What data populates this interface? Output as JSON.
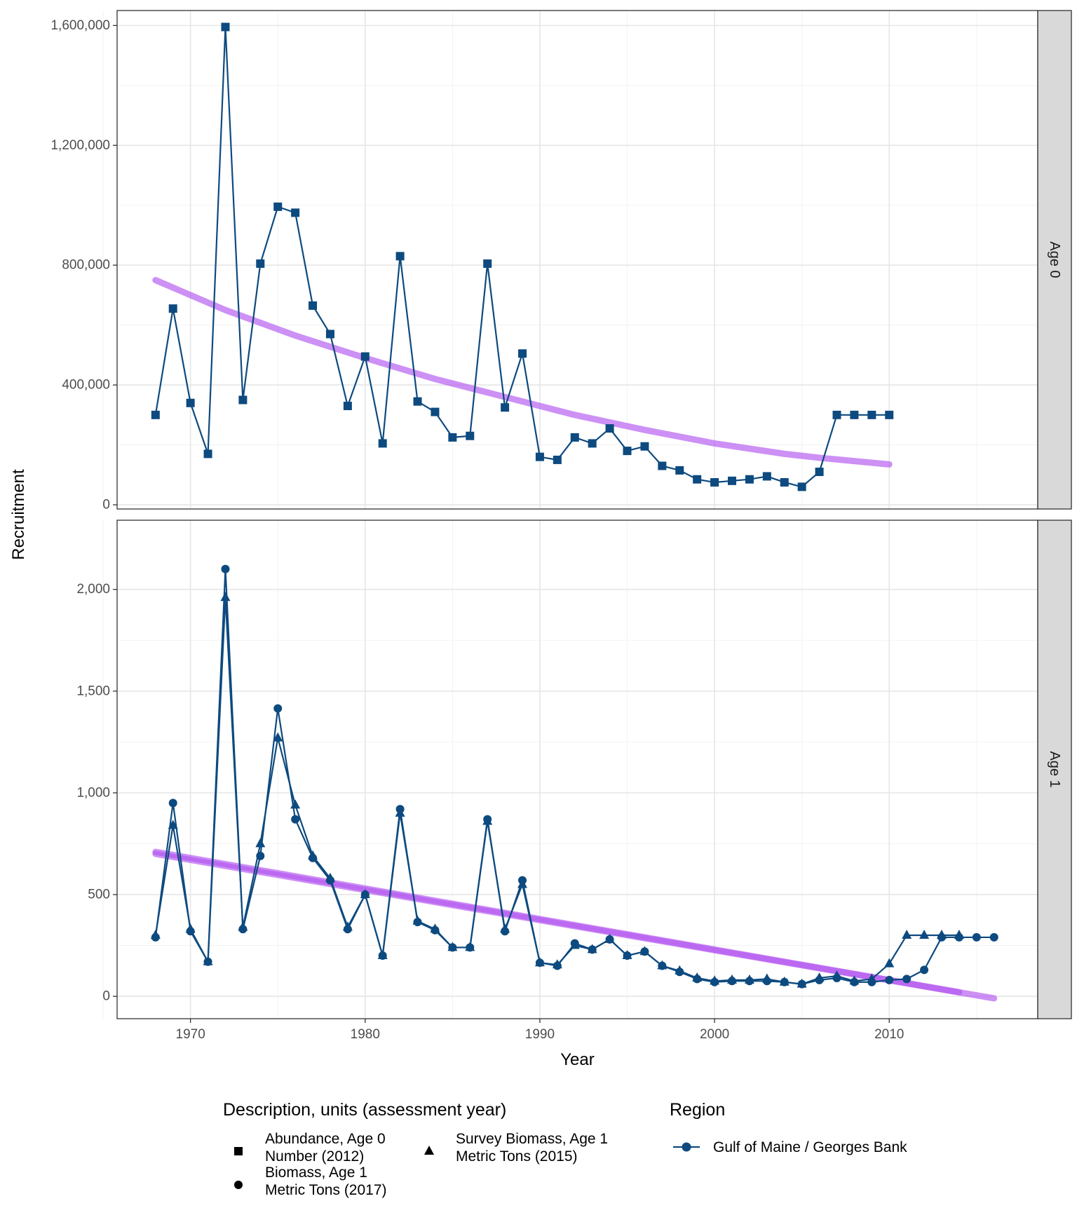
{
  "chart_data": {
    "type": "line",
    "xlabel": "Year",
    "ylabel": "Recruitment",
    "x_ticks": [
      1970,
      1980,
      1990,
      2000,
      2010
    ],
    "xlim": [
      1965.8,
      2018.5
    ],
    "grid": true,
    "trend_color": "#b255f0",
    "series_color": "#0d4a7f",
    "strip_color": "#d9d9d9",
    "legend": {
      "description_title": "Description, units (assessment year)",
      "items": [
        {
          "shape": "square",
          "line1": "Abundance, Age 0",
          "line2": "Number (2012)"
        },
        {
          "shape": "triangle",
          "line1": "Survey Biomass, Age 1",
          "line2": "Metric Tons (2015)"
        },
        {
          "shape": "circle",
          "line1": "Biomass, Age 1",
          "line2": "Metric Tons (2017)"
        }
      ],
      "region_title": "Region",
      "region_label": "Gulf of Maine / Georges Bank"
    },
    "panels": [
      {
        "strip": "Age 0",
        "ylim": [
          -14000,
          1650000
        ],
        "y_ticks": [
          0,
          400000,
          800000,
          1200000,
          1600000
        ],
        "y_tick_labels": [
          "0",
          "400,000",
          "800,000",
          "1,200,000",
          "1,600,000"
        ],
        "series": [
          {
            "shape": "square",
            "x": [
              1968,
              1969,
              1970,
              1971,
              1972,
              1973,
              1974,
              1975,
              1976,
              1977,
              1978,
              1979,
              1980,
              1981,
              1982,
              1983,
              1984,
              1985,
              1986,
              1987,
              1988,
              1989,
              1990,
              1991,
              1992,
              1993,
              1994,
              1995,
              1996,
              1997,
              1998,
              1999,
              2000,
              2001,
              2002,
              2003,
              2004,
              2005,
              2006,
              2007,
              2008,
              2009,
              2010
            ],
            "values": [
              300000,
              655000,
              340000,
              170000,
              1595000,
              350000,
              805000,
              995000,
              975000,
              665000,
              570000,
              330000,
              495000,
              205000,
              830000,
              345000,
              310000,
              225000,
              230000,
              805000,
              325000,
              505000,
              160000,
              150000,
              225000,
              205000,
              255000,
              180000,
              195000,
              130000,
              115000,
              85000,
              75000,
              80000,
              85000,
              95000,
              75000,
              60000,
              110000,
              300000,
              300000,
              300000,
              300000
            ]
          }
        ],
        "trend": [
          {
            "x": [
              1968,
              1972,
              1976,
              1980,
              1984,
              1988,
              1992,
              1996,
              2000,
              2004,
              2006,
              2010
            ],
            "values": [
              750000,
              650000,
              565000,
              490000,
              420000,
              360000,
              300000,
              250000,
              205000,
              170000,
              157000,
              135000
            ]
          }
        ]
      },
      {
        "strip": "Age 1",
        "ylim": [
          -110,
          2340
        ],
        "y_ticks": [
          0,
          500,
          1000,
          1500,
          2000
        ],
        "y_tick_labels": [
          "0",
          "500",
          "1,000",
          "1,500",
          "2,000"
        ],
        "series": [
          {
            "shape": "circle",
            "x": [
              1968,
              1969,
              1970,
              1971,
              1972,
              1973,
              1974,
              1975,
              1976,
              1977,
              1978,
              1979,
              1980,
              1981,
              1982,
              1983,
              1984,
              1985,
              1986,
              1987,
              1988,
              1989,
              1990,
              1991,
              1992,
              1993,
              1994,
              1995,
              1996,
              1997,
              1998,
              1999,
              2000,
              2001,
              2002,
              2003,
              2004,
              2005,
              2006,
              2007,
              2008,
              2009,
              2010,
              2011,
              2012,
              2013,
              2014,
              2015,
              2016
            ],
            "values": [
              290,
              950,
              320,
              170,
              2100,
              330,
              690,
              1415,
              870,
              680,
              570,
              330,
              500,
              200,
              920,
              365,
              325,
              240,
              240,
              870,
              320,
              570,
              165,
              150,
              260,
              230,
              280,
              200,
              220,
              150,
              120,
              85,
              70,
              75,
              75,
              75,
              70,
              60,
              80,
              90,
              70,
              70,
              80,
              85,
              130,
              290,
              290,
              290,
              290
            ]
          },
          {
            "shape": "triangle",
            "x": [
              1968,
              1969,
              1970,
              1971,
              1972,
              1973,
              1974,
              1975,
              1976,
              1977,
              1978,
              1979,
              1980,
              1981,
              1982,
              1983,
              1984,
              1985,
              1986,
              1987,
              1988,
              1989,
              1990,
              1991,
              1992,
              1993,
              1994,
              1995,
              1996,
              1997,
              1998,
              1999,
              2000,
              2001,
              2002,
              2003,
              2004,
              2005,
              2006,
              2007,
              2008,
              2009,
              2010,
              2011,
              2012,
              2013,
              2014
            ],
            "values": [
              300,
              840,
              330,
              170,
              1960,
              340,
              750,
              1270,
              940,
              690,
              580,
              340,
              500,
              200,
              900,
              370,
              330,
              240,
              240,
              860,
              330,
              550,
              165,
              155,
              250,
              230,
              280,
              200,
              220,
              150,
              125,
              90,
              75,
              80,
              80,
              85,
              70,
              60,
              90,
              100,
              75,
              85,
              160,
              300,
              300,
              300,
              300
            ]
          }
        ],
        "trend": [
          {
            "x": [
              1968,
              2014
            ],
            "values": [
              710,
              20
            ]
          },
          {
            "x": [
              1968,
              2016
            ],
            "values": [
              700,
              -10
            ]
          }
        ]
      }
    ]
  }
}
